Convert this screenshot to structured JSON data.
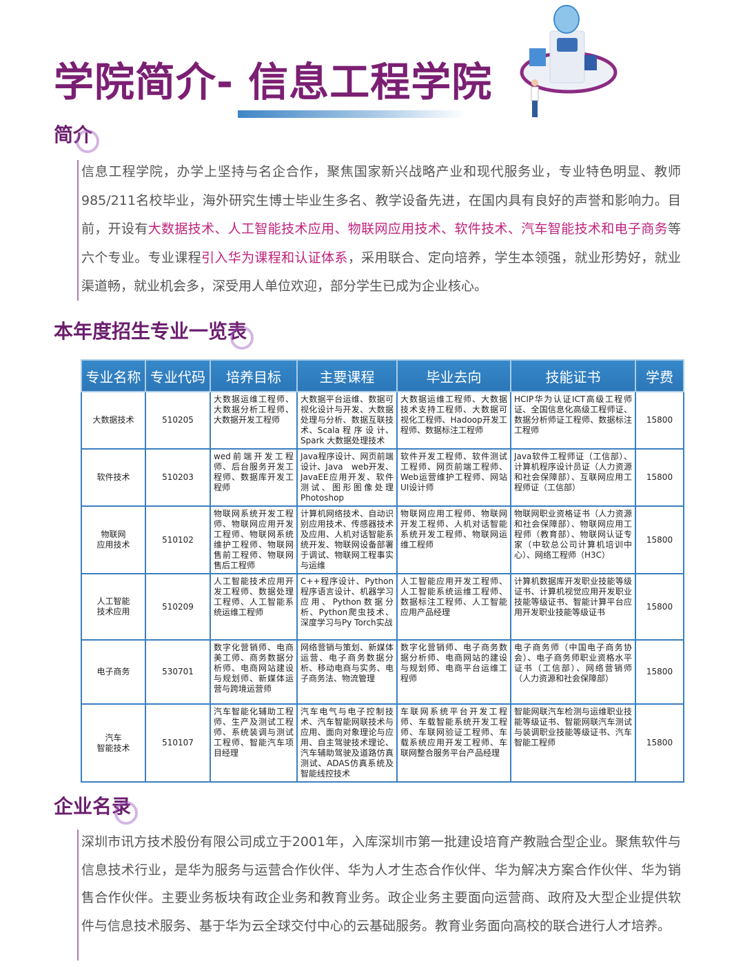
{
  "header": {
    "title": "学院简介- 信息工程学院"
  },
  "intro": {
    "heading": "简介",
    "segments": [
      {
        "text": "信息工程学院，办学上坚持与名企合作，聚焦国家新兴战略产业和现代服务业，专业特色明显、教师985/211名校毕业，海外研究生博士毕业生多名、教学设备先进，在国内具有良好的声誉和影响力。目前，开设有",
        "hl": false
      },
      {
        "text": "大数据技术、人工智能技术应用、物联网应用技术、软件技术、汽车智能技术和电子商务",
        "hl": true
      },
      {
        "text": "等六个专业。专业课程",
        "hl": false
      },
      {
        "text": "引入华为课程和认证体系",
        "hl": true
      },
      {
        "text": "，采用联合、定向培养，学生本领强，就业形势好，就业渠道畅，就业机会多，深受用人单位欢迎，部分学生已成为企业核心。",
        "hl": false
      }
    ]
  },
  "majors": {
    "heading": "本年度招生专业一览表",
    "columns": [
      "专业名称",
      "专业代码",
      "培养目标",
      "主要课程",
      "毕业去向",
      "技能证书",
      "学费"
    ],
    "rows": [
      {
        "name": "大数据技术",
        "code": "510205",
        "goal": "大数据运维工程师、大数据分析工程师、大数据开发工程师",
        "courses": "大数据平台运维、数据可视化设计与开发、大数据处理与分析、数据互联技术、Scala 程 序 设 计、Spark 大数据处理技术",
        "career": "大数据运维工程师、大数据技术支持工程师、大数据可视化工程师、Hadoop开发工程师、数据标注工程师",
        "cert": "HCIP华为认证ICT高级工程师证、全国信息化高级工程师证、数据分析师证工程师、数据标注工程师",
        "fee": "15800"
      },
      {
        "name": "软件技术",
        "code": "510203",
        "goal": "wed前端开发工程师、后台服务开发工程师、数据库开发工程师",
        "courses": "Java程序设计、网页前端设计、Java　web开发、JavaEE应用开发、软件测试、图形图像处理Photoshop",
        "career": "软件开发工程师、软件测试工程师、网页前端工程师、Web运营维护工程师、网站UI设计师",
        "cert": "Java软件工程师证（工信部）、计算机程序设计员证（人力资源和社会保障部）、互联网应用工程师证（工信部）",
        "fee": "15800"
      },
      {
        "name": "物联网\n应用技术",
        "code": "510102",
        "goal": "物联网系统开发工程师、物联网应用开发工程师、物联网系统维护工程师、物联网售前工程师、物联网售后工程师",
        "courses": "计算机网络技术、自动识别应用技术、传感器技术及应用、人机对话智能系统开发、物联网设备部署于调试、物联网工程事实与运维",
        "career": "物联网应用工程师、物联网开发工程师、人机对话智能系统开发工程师、物联网运维工程师",
        "cert": "物联网职业资格证书（人力资源和社会保障部）、物联网应用工程师（教育部）、物联网认证专家（中软总公司计算机培训中心）、网络工程师（H3C）",
        "fee": "15800"
      },
      {
        "name": "人工智能\n技术应用",
        "code": "510209",
        "goal": "人工智能技术应用开发工程师、数据处理工程师、人工智能系统运维工程师",
        "courses": "C++程序设计、Python程序语言设计、机器学习应用、Python数据分析、Python爬虫技术、深度学习与Py Torch实战",
        "career": "人工智能应用开发工程师、人工智能系统运维工程师、数据标注工程师、人工智能应用产品经理",
        "cert": "计算机数据库开发职业技能等级证书、计算机视觉应用开发职业技能等级证书、智能计算平台应用开发职业技能等级证书",
        "fee": "15800"
      },
      {
        "name": "电子商务",
        "code": "530701",
        "goal": "数字化营销师、电商美工师、商务数据分析师、电商网站建设与规划师、新媒体运营与跨境运营师",
        "courses": "网络营销与策划、新媒体运营、电子商务数据分析、移动电商与实务、电子商务法、物流管理",
        "career": "数字化营销师、电子商务数据分析师、电商网站的建设与规划师、电商平台运维工程师",
        "cert": "电子商务师（中国电子商务协会）、电子商务师职业资格水平证书（工信部）、网络营销师（人力资源和社会保障部）",
        "fee": "15800"
      },
      {
        "name": "汽车\n智能技术",
        "code": "510107",
        "goal": "汽车智能化辅助工程师、生产及测试工程师、系统装调与测试工程师、智能汽车项目经理",
        "courses": "汽车电气与电子控制技术、汽车智能网联技术与应用、面向对象理论与应用、自主驾驶技术理论、汽车辅助驾驶及道路仿真测试、ADAS仿真系统及智能线控技术",
        "career": "车联网系统平台开发工程师、车载智能系统开发工程师、车联网验证工程师、车载系统应用开发工程师、车联网整合服务平台产品经理",
        "cert": "智能网联汽车检测与运维职业技能等级证书、智能网联汽车测试与装调职业技能等级证书、汽车智能工程师",
        "fee": "15800"
      }
    ]
  },
  "enterprise": {
    "heading": "企业名录",
    "text": "深圳市讯方技术股份有限公司成立于2001年，入库深圳市第一批建设培育产教融合型企业。聚焦软件与信息技术行业，是华为服务与运营合作伙伴、华为人才生态合作伙伴、华为解决方案合作伙伴、华为销售合作伙伴。主要业务板块有政企业务和教育业务。政企业务主要面向运营商、政府及大型企业提供软件与信息技术服务、基于华为云全球交付中心的云基础服务。教育业务面向高校的联合进行人才培养。"
  },
  "colors": {
    "title": "#7b1f73",
    "highlight": "#c0237d",
    "table_header": "#2f7fc0",
    "table_border": "#3a7fc0",
    "body_text": "#555555"
  }
}
